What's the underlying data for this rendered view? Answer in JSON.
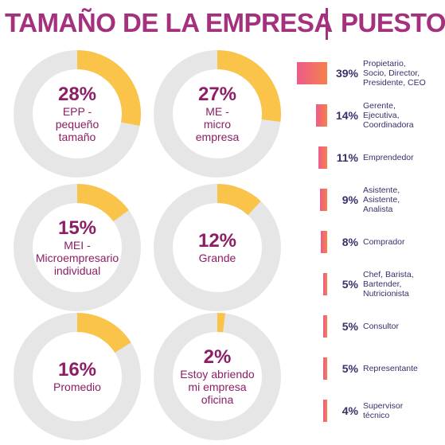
{
  "header": {
    "left_title": "TAMAÑO DE LA EMPRESA",
    "right_title": "PUESTO"
  },
  "colors": {
    "title": "#a4307e",
    "donut_fill": "#f9c449",
    "donut_track": "#e6e6e6",
    "donut_text": "#8c1e66",
    "bar_start": "#ee5a8a",
    "bar_end": "#f5814a",
    "role_text": "#3a2f6b"
  },
  "chart_data": [
    {
      "type": "pie",
      "title": "TAMAÑO DE LA EMPRESA",
      "variant": "donut",
      "slices": [
        {
          "value": 28,
          "pct_label": "28%",
          "label": "EPP -\npequeño\ntamaño"
        },
        {
          "value": 27,
          "pct_label": "27%",
          "label": "ME -\nmicro\nempresa"
        },
        {
          "value": 15,
          "pct_label": "15%",
          "label": "MEI -\nMicroempresario\nindividual"
        },
        {
          "value": 12,
          "pct_label": "12%",
          "label": "Grande"
        },
        {
          "value": 16,
          "pct_label": "16%",
          "label": "Promedio"
        },
        {
          "value": 2,
          "pct_label": "2%",
          "label": "Estoy abriendo\nmi empresa\noficina"
        }
      ]
    },
    {
      "type": "bar",
      "title": "PUESTO",
      "orientation": "horizontal",
      "categories": [
        "Propietario,\nSocio, Director,\nPresidente, CEO",
        "Gerente,\nEjecutiva,\nCoordinadora",
        "Emprendedor",
        "Asistente,\nAsistente,\nAnalista",
        "Comprador",
        "Chef, Barista,\nBartender,\nNutricionista",
        "Consultor",
        "Representante",
        "Supervisor\ntécnico"
      ],
      "values": [
        39,
        14,
        11,
        9,
        8,
        5,
        5,
        5,
        4
      ],
      "value_labels": [
        "39%",
        "14%",
        "11%",
        "9%",
        "8%",
        "5%",
        "5%",
        "5%",
        "4%"
      ]
    }
  ]
}
